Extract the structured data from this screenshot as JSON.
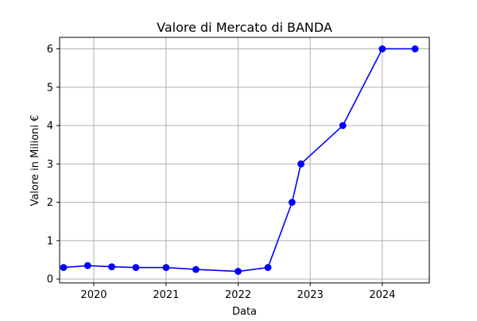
{
  "chart_data": {
    "type": "line",
    "title": "Valore di Mercato di BANDA",
    "xlabel": "Data",
    "ylabel": "Valore in Milioni €",
    "x_ticks": [
      "2020",
      "2021",
      "2022",
      "2023",
      "2024"
    ],
    "y_ticks": [
      "0",
      "1",
      "2",
      "3",
      "4",
      "5",
      "6"
    ],
    "xlim": [
      "2019-07-12",
      "2024-08-26"
    ],
    "ylim": [
      -0.1,
      6.3
    ],
    "grid": true,
    "series": [
      {
        "color": "#0000ff",
        "marker": "circle",
        "points": [
          {
            "x": "2019-08-01",
            "y": 0.3
          },
          {
            "x": "2019-12-01",
            "y": 0.35
          },
          {
            "x": "2020-04-01",
            "y": 0.32
          },
          {
            "x": "2020-08-01",
            "y": 0.3
          },
          {
            "x": "2021-01-01",
            "y": 0.3
          },
          {
            "x": "2021-06-01",
            "y": 0.25
          },
          {
            "x": "2022-01-01",
            "y": 0.2
          },
          {
            "x": "2022-06-01",
            "y": 0.3
          },
          {
            "x": "2022-10-01",
            "y": 2.0
          },
          {
            "x": "2022-11-15",
            "y": 3.0
          },
          {
            "x": "2023-06-15",
            "y": 4.0
          },
          {
            "x": "2024-01-01",
            "y": 6.0
          },
          {
            "x": "2024-06-15",
            "y": 6.0
          }
        ]
      }
    ]
  }
}
